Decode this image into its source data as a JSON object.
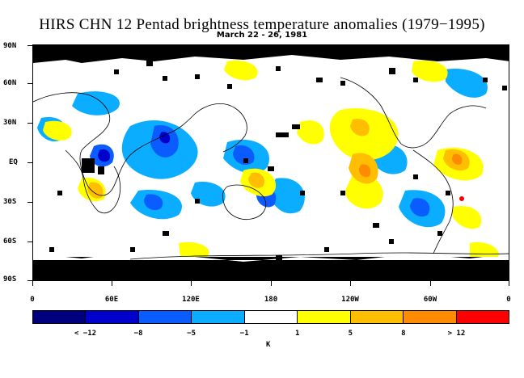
{
  "title": "HIRS CHN 12 Pentad brightness temperature anomalies (1979−1995)",
  "subtitle": "March 22 - 26, 1981",
  "lat_labels": [
    "90N",
    "60N",
    "30N",
    "EQ",
    "30S",
    "60S",
    "90S"
  ],
  "lon_labels": [
    "0",
    "60E",
    "120E",
    "180",
    "120W",
    "60W",
    "0"
  ],
  "colorbar": {
    "colors": [
      "#00007f",
      "#0000cd",
      "#0a5cff",
      "#0aadff",
      "#ffffff",
      "#ffff00",
      "#ffbf00",
      "#ff8c00",
      "#ff0000"
    ],
    "labels": [
      "< −12",
      "−8",
      "−5",
      "−1",
      "1",
      "5",
      "8",
      "> 12"
    ],
    "unit": "K"
  },
  "map": {
    "missing_color": "#000000",
    "coastline_color": "#000000"
  }
}
